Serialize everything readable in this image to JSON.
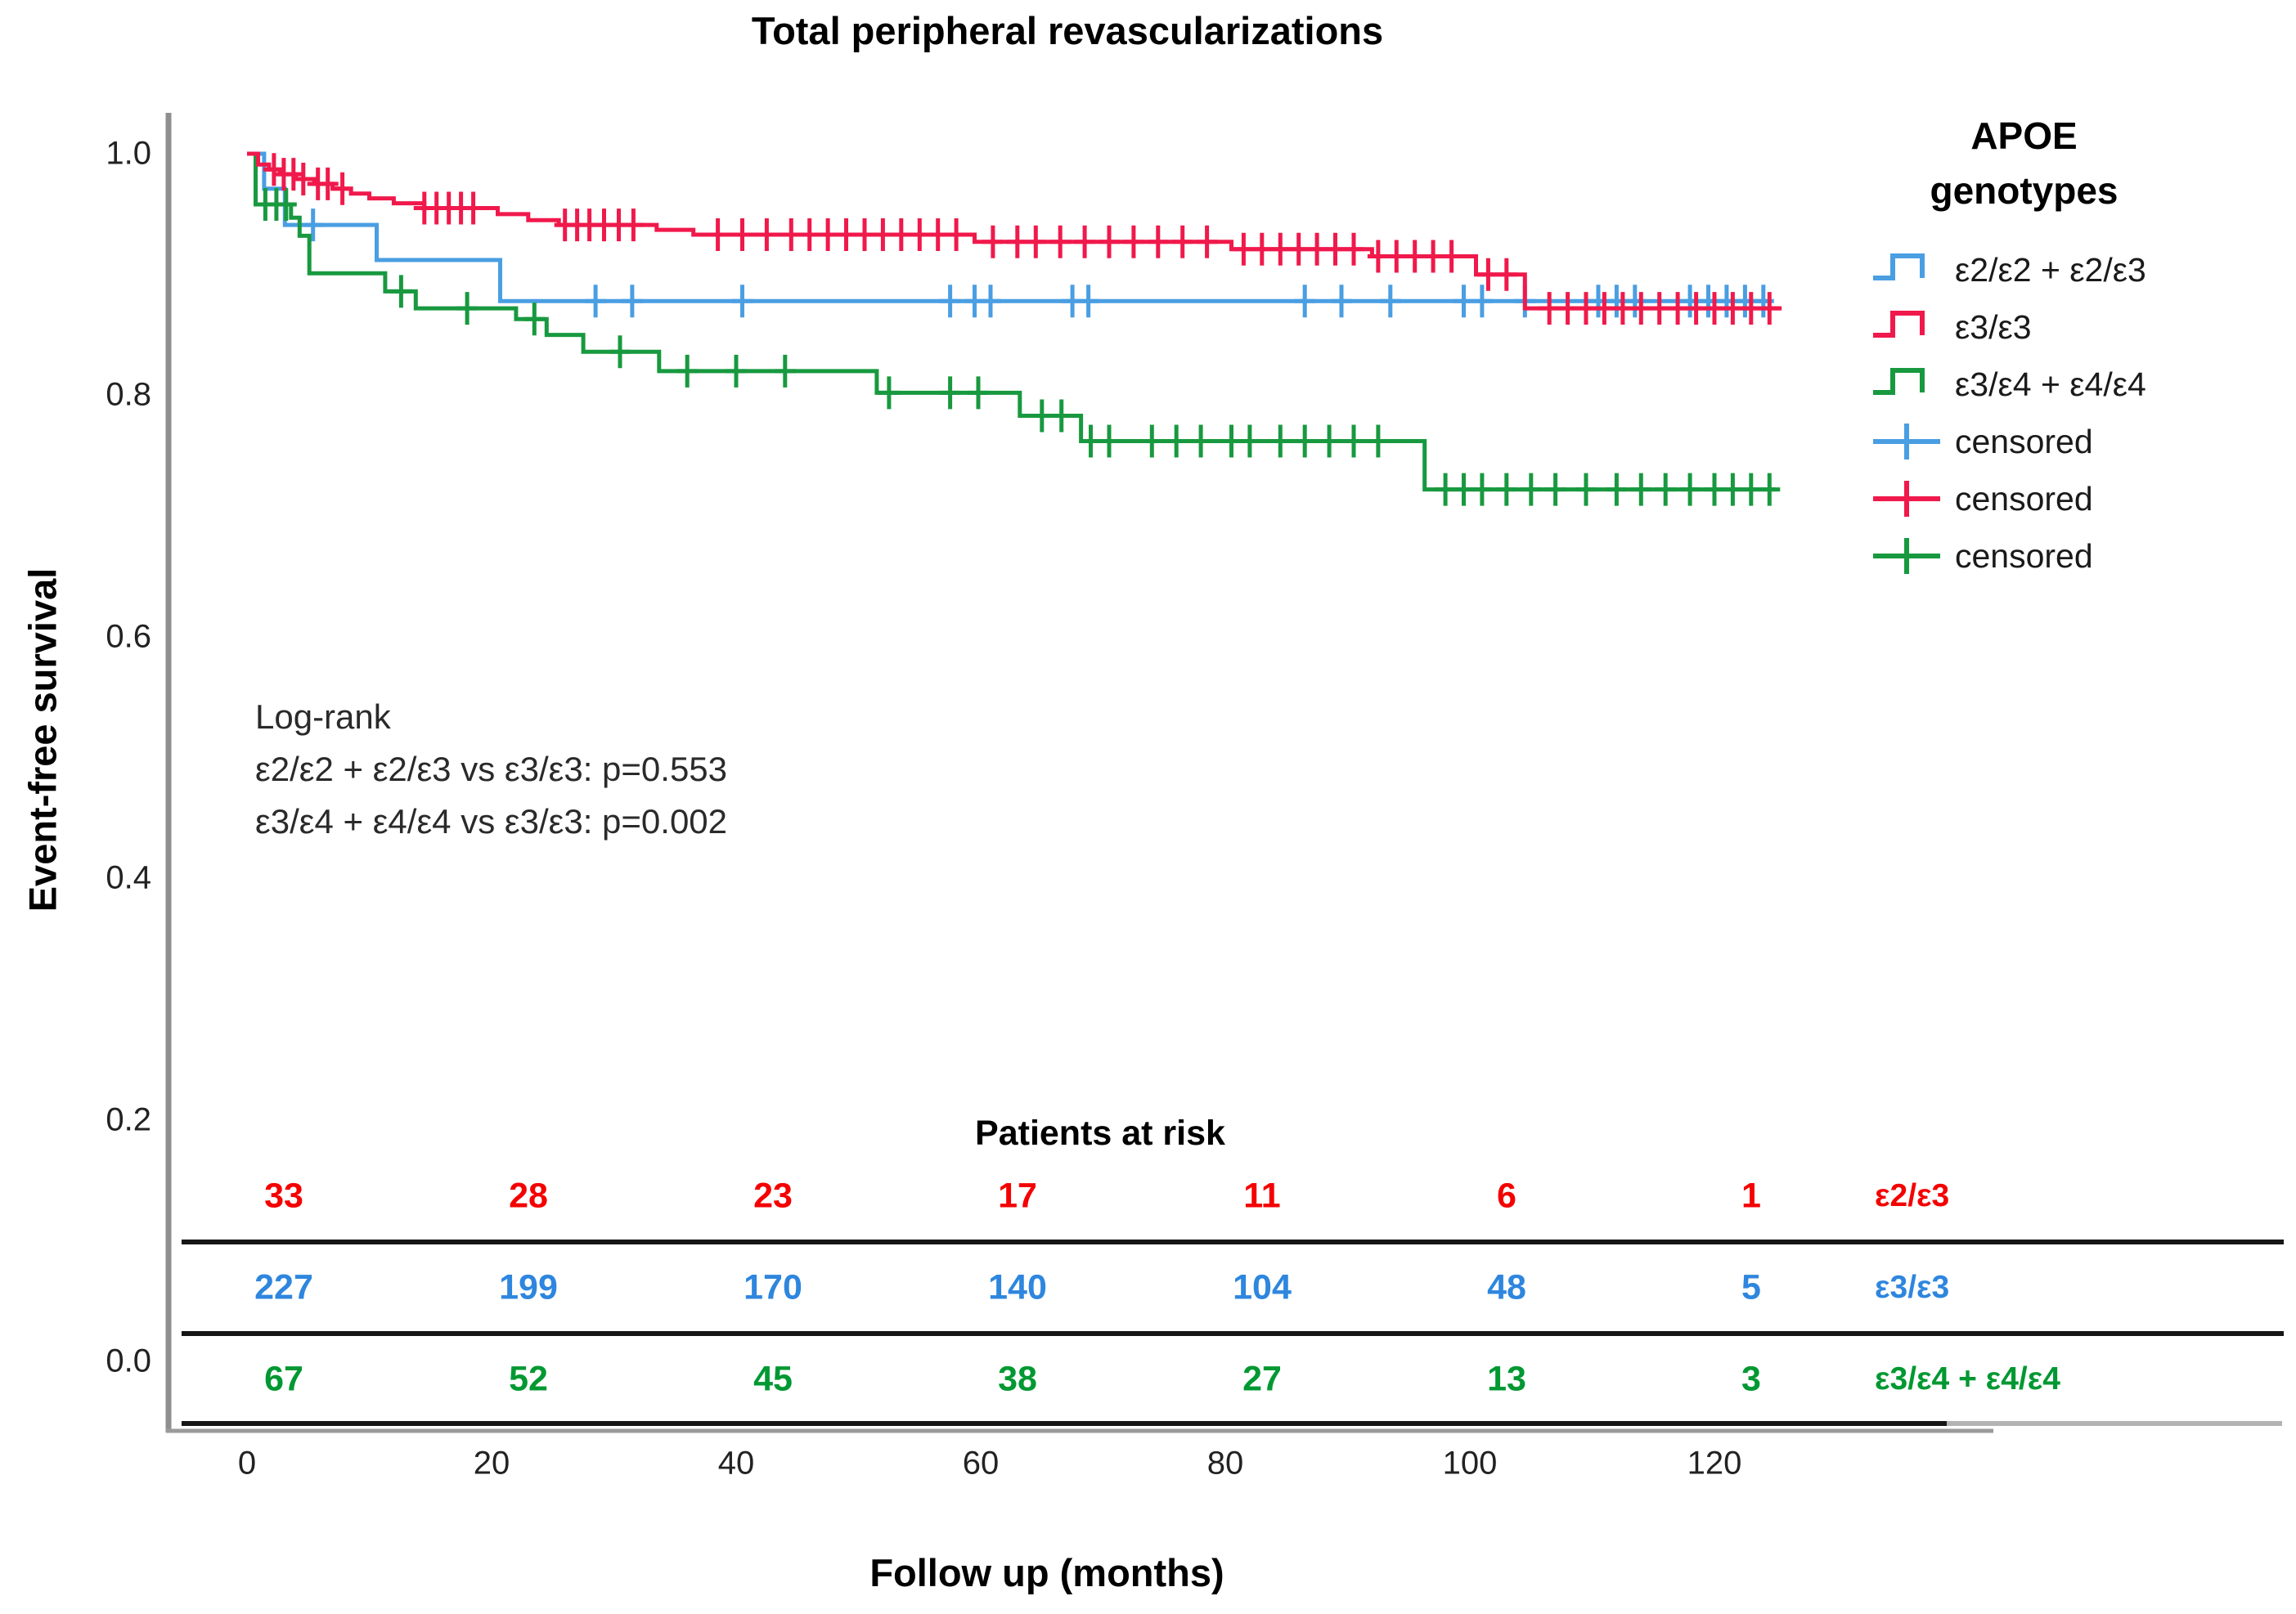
{
  "chart": {
    "title": "Total peripheral revascularizations",
    "x_axis": {
      "label": "Follow up (months)",
      "ticks": [
        0,
        20,
        40,
        60,
        80,
        100,
        120
      ]
    },
    "y_axis": {
      "label": "Event-free survival",
      "ticks": [
        "1.0",
        "0.8",
        "0.6",
        "0.4",
        "0.2",
        "0.0"
      ]
    },
    "annotation": {
      "lines": [
        "Log-rank",
        "ε2/ε2 + ε2/ε3 vs ε3/ε3: p=0.553",
        "ε3/ε4 + ε4/ε4 vs ε3/ε3: p=0.002"
      ]
    },
    "legend": {
      "title_lines": [
        "APOE",
        "genotypes"
      ],
      "items": [
        {
          "label": "ε2/ε2 + ε2/ε3",
          "marker": "step",
          "color": "#4a9ee2"
        },
        {
          "label": "ε3/ε3",
          "marker": "step",
          "color": "#f0194b"
        },
        {
          "label": "ε3/ε4 + ε4/ε4",
          "marker": "step",
          "color": "#18993f"
        },
        {
          "label": "censored",
          "marker": "censored",
          "color": "#4a9ee2"
        },
        {
          "label": "censored",
          "marker": "censored",
          "color": "#f0194b"
        },
        {
          "label": "censored",
          "marker": "censored",
          "color": "#18993f"
        }
      ]
    },
    "risk_table": {
      "title": "Patients at risk",
      "rows": [
        {
          "label": "ε2/ε3",
          "color": "#f50000",
          "values": [
            "33",
            "28",
            "23",
            "17",
            "11",
            "6",
            "1"
          ]
        },
        {
          "label": "ε3/ε3",
          "color": "#2e86de",
          "values": [
            "227",
            "199",
            "170",
            "140",
            "104",
            "48",
            "5"
          ]
        },
        {
          "label": "ε3/ε4 + ε4/ε4",
          "color": "#009832",
          "values": [
            "67",
            "52",
            "45",
            "38",
            "27",
            "13",
            "3"
          ]
        }
      ]
    }
  },
  "chart_data": {
    "type": "line",
    "subtype": "kaplan-meier-step",
    "title": "Total peripheral revascularizations",
    "xlabel": "Follow up (months)",
    "ylabel": "Event-free survival",
    "xlim": [
      0,
      143
    ],
    "ylim": [
      0.0,
      1.05
    ],
    "x_ticks": [
      0,
      20,
      40,
      60,
      80,
      100,
      120
    ],
    "y_ticks": [
      1.0,
      0.8,
      0.6,
      0.4,
      0.2,
      0.0
    ],
    "grid": false,
    "legend_position": "right",
    "series": [
      {
        "name": "ε2/ε2 + ε2/ε3",
        "color": "#4a9ee2",
        "end_time": 124.5,
        "steps": [
          [
            0,
            1.0
          ],
          [
            1.4,
            0.971
          ],
          [
            3.1,
            0.941
          ],
          [
            10.6,
            0.912
          ],
          [
            20.7,
            0.878
          ]
        ],
        "censor_times": [
          5.4,
          28.5,
          31.5,
          40.5,
          57.5,
          59.5,
          60.8,
          67.5,
          68.8,
          86.5,
          89.5,
          93.5,
          99.5,
          101,
          104.5,
          110.5,
          112,
          113.5,
          118,
          119.5,
          121,
          122.5,
          124
        ]
      },
      {
        "name": "ε3/ε3",
        "color": "#f0194b",
        "end_time": 125.5,
        "steps": [
          [
            0,
            1.0
          ],
          [
            0.9,
            0.991
          ],
          [
            1.8,
            0.987
          ],
          [
            2.7,
            0.983
          ],
          [
            4,
            0.979
          ],
          [
            5.5,
            0.975
          ],
          [
            7,
            0.971
          ],
          [
            8.5,
            0.967
          ],
          [
            10,
            0.963
          ],
          [
            12,
            0.959
          ],
          [
            14.5,
            0.955
          ],
          [
            20.5,
            0.95
          ],
          [
            23,
            0.945
          ],
          [
            25.5,
            0.941
          ],
          [
            33.5,
            0.937
          ],
          [
            36.5,
            0.933
          ],
          [
            59.5,
            0.927
          ],
          [
            80.5,
            0.921
          ],
          [
            92,
            0.915
          ],
          [
            100.5,
            0.9
          ],
          [
            104.5,
            0.872
          ]
        ],
        "censor_times": [
          2.2,
          3.0,
          3.8,
          4.6,
          5.8,
          6.6,
          7.8,
          14.5,
          15.5,
          16.5,
          17.5,
          18.5,
          26,
          27,
          28,
          29.2,
          30.4,
          31.6,
          38.5,
          40.5,
          42.5,
          44.5,
          46,
          47.5,
          49,
          50.5,
          52,
          53.5,
          55,
          56.5,
          58,
          61,
          63,
          64.5,
          66.5,
          68.5,
          70.5,
          72.5,
          74.5,
          76.5,
          78.5,
          81.5,
          83,
          84.5,
          86,
          87.5,
          89,
          90.5,
          92.5,
          94,
          95.5,
          97,
          98.5,
          101.5,
          103,
          106.5,
          108,
          109.5,
          111,
          112.5,
          114,
          115.5,
          117,
          118.5,
          120,
          121.5,
          123,
          124.5
        ]
      },
      {
        "name": "ε3/ε4 + ε4/ε4",
        "color": "#18993f",
        "end_time": 125.0,
        "steps": [
          [
            0,
            1.0
          ],
          [
            0.7,
            0.958
          ],
          [
            3.6,
            0.947
          ],
          [
            4.3,
            0.932
          ],
          [
            5.1,
            0.901
          ],
          [
            11.3,
            0.886
          ],
          [
            13.8,
            0.872
          ],
          [
            22,
            0.863
          ],
          [
            24.5,
            0.85
          ],
          [
            27.5,
            0.836
          ],
          [
            33.7,
            0.82
          ],
          [
            51.5,
            0.802
          ],
          [
            63.2,
            0.783
          ],
          [
            68.2,
            0.762
          ],
          [
            96.3,
            0.722
          ]
        ],
        "censor_times": [
          1.5,
          2.4,
          3.2,
          12.6,
          18,
          23.5,
          30.5,
          36,
          40,
          44,
          52.5,
          57.5,
          59.8,
          65,
          66.6,
          69,
          70.5,
          74,
          76,
          78,
          80.5,
          82,
          84.5,
          86.5,
          88.5,
          90.5,
          92.5,
          98,
          99.5,
          101,
          103,
          105,
          107,
          109.5,
          112,
          114,
          116,
          118,
          120,
          121.5,
          123,
          124.5
        ]
      }
    ],
    "patients_at_risk": {
      "title": "Patients at risk",
      "times": [
        0,
        20,
        40,
        60,
        80,
        100,
        120
      ],
      "rows": [
        {
          "group": "ε2/ε3",
          "counts": [
            33,
            28,
            23,
            17,
            11,
            6,
            1
          ]
        },
        {
          "group": "ε3/ε3",
          "counts": [
            227,
            199,
            170,
            140,
            104,
            48,
            5
          ]
        },
        {
          "group": "ε3/ε4 + ε4/ε4",
          "counts": [
            67,
            52,
            45,
            38,
            27,
            13,
            3
          ]
        }
      ]
    },
    "annotations": [
      "Log-rank",
      "ε2/ε2 + ε2/ε3 vs ε3/ε3: p=0.553",
      "ε3/ε4 + ε4/ε4 vs ε3/ε3: p=0.002"
    ]
  }
}
